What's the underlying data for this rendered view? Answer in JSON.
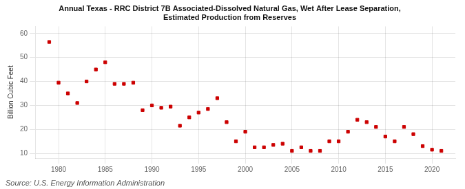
{
  "chart_data": {
    "type": "scatter",
    "title": "Annual Texas - RRC District 7B Associated-Dissolved Natural Gas, Wet After Lease Separation,\nEstimated Production from Reserves",
    "ylabel": "Billion Cubic Feet",
    "annotations": [
      "Source: U.S. Energy Information Administration"
    ],
    "x": [
      1979,
      1980,
      1981,
      1982,
      1983,
      1984,
      1985,
      1986,
      1987,
      1988,
      1989,
      1990,
      1991,
      1992,
      1993,
      1994,
      1995,
      1996,
      1997,
      1998,
      1999,
      2000,
      2001,
      2002,
      2003,
      2004,
      2005,
      2006,
      2007,
      2008,
      2009,
      2010,
      2011,
      2012,
      2013,
      2014,
      2015,
      2016,
      2017,
      2018,
      2019,
      2020,
      2021
    ],
    "values": [
      56.5,
      39.5,
      35.0,
      31.0,
      40.0,
      45.0,
      48.0,
      39.0,
      39.0,
      39.5,
      28.0,
      30.0,
      29.0,
      29.5,
      21.5,
      25.0,
      27.0,
      28.5,
      33.0,
      23.0,
      15.0,
      19.0,
      12.5,
      12.5,
      13.5,
      14.0,
      11.0,
      12.5,
      11.0,
      11.0,
      15.0,
      15.0,
      19.0,
      24.0,
      23.0,
      21.0,
      17.0,
      15.0,
      21.0,
      18.0,
      13.0,
      11.5,
      11.0
    ],
    "color": "#cc0000",
    "marker": "square",
    "xlim": [
      1977.5,
      2022.5
    ],
    "ylim": [
      8,
      63
    ],
    "xticks": [
      1980,
      1985,
      1990,
      1995,
      2000,
      2005,
      2010,
      2015,
      2020
    ],
    "yticks": [
      10,
      20,
      30,
      40,
      50,
      60
    ],
    "grid": true
  }
}
